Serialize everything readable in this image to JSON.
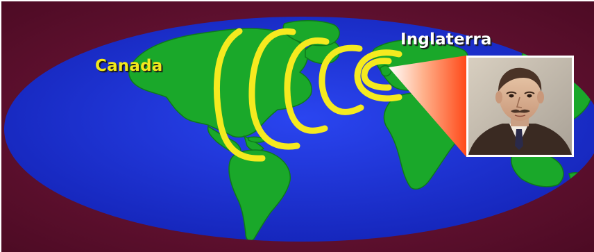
{
  "map": {
    "labels": [
      {
        "name": "canada",
        "text": "Canada"
      },
      {
        "name": "england",
        "text": "Inglaterra"
      }
    ],
    "colors": {
      "background": "#5a0e2a",
      "ocean": "#1a2fd6",
      "land": "#1aa82a",
      "waves": "#f5ea1f",
      "label_canada": "#f2e81c",
      "label_england": "#ffffff",
      "beam": "#ff5a2a"
    },
    "wave_count": 6
  },
  "portrait": {
    "icon": "man-portrait-icon"
  }
}
